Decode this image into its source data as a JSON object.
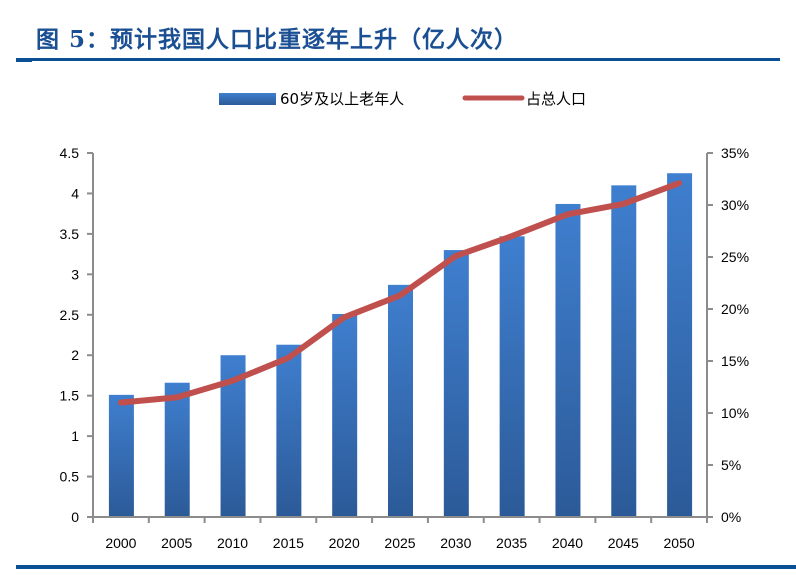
{
  "title": "图 5：预计我国人口比重逐年上升（亿人次）",
  "chart_data": {
    "type": "bar+line",
    "title": "图 5：预计我国人口比重逐年上升（亿人次）",
    "categories": [
      "2000",
      "2005",
      "2010",
      "2015",
      "2020",
      "2025",
      "2030",
      "2035",
      "2040",
      "2045",
      "2050"
    ],
    "series": [
      {
        "name": "60岁及以上老年人",
        "type": "bar",
        "axis": "left",
        "color": "#3a78c6",
        "values": [
          1.51,
          1.66,
          2.0,
          2.13,
          2.51,
          2.87,
          3.3,
          3.47,
          3.87,
          4.1,
          4.25
        ]
      },
      {
        "name": "占总人口",
        "type": "line",
        "axis": "right",
        "color": "#c0504d",
        "values": [
          11.0,
          11.5,
          13.1,
          15.3,
          19.2,
          21.3,
          25.1,
          27.0,
          29.1,
          30.1,
          32.1
        ]
      }
    ],
    "left_axis": {
      "range": [
        0,
        4.5
      ],
      "ticks": [
        "0",
        "0.5",
        "1",
        "1.5",
        "2",
        "2.5",
        "3",
        "3.5",
        "4",
        "4.5"
      ]
    },
    "right_axis": {
      "range": [
        0,
        35
      ],
      "unit": "%",
      "ticks": [
        "0%",
        "5%",
        "10%",
        "15%",
        "20%",
        "25%",
        "30%",
        "35%"
      ]
    },
    "grid": false,
    "legend_position": "top"
  }
}
